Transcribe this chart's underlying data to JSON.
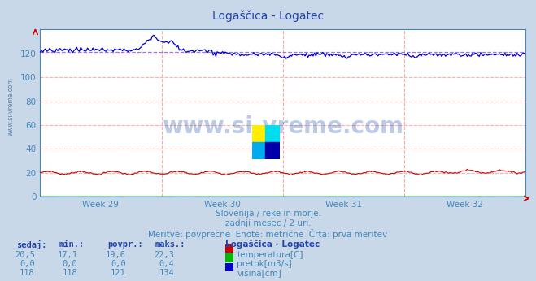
{
  "title": "Logaščica - Logatec",
  "bg_color": "#c8d8e8",
  "plot_bg_color": "#ffffff",
  "title_color": "#2244aa",
  "axis_color": "#4488bb",
  "grid_color_v": "#ffaaaa",
  "grid_color_h": "#ffaaaa",
  "week_labels": [
    "Week 29",
    "Week 30",
    "Week 31",
    "Week 32"
  ],
  "ylim": [
    0,
    140
  ],
  "yticks": [
    0,
    20,
    40,
    60,
    80,
    100,
    120
  ],
  "watermark": "www.si-vreme.com",
  "watermark_color": "#2255aa",
  "subtitle1": "Slovenija / reke in morje.",
  "subtitle2": "zadnji mesec / 2 uri.",
  "subtitle3": "Meritve: povprečne  Enote: metrične  Črta: prva meritev",
  "subtitle_color": "#4488bb",
  "table_header_color": "#2244aa",
  "table_value_color": "#4488bb",
  "table_headers": [
    "sedaj:",
    "min.:",
    "povpr.:",
    "maks.:"
  ],
  "table_row1": [
    "20,5",
    "17,1",
    "19,6",
    "22,3"
  ],
  "table_row2": [
    "0,0",
    "0,0",
    "0,0",
    "0,4"
  ],
  "table_row3": [
    "118",
    "118",
    "121",
    "134"
  ],
  "legend_title": "Logaščica - Logatec",
  "legend_items": [
    "temperatura[C]",
    "pretok[m3/s]",
    "višina[cm]"
  ],
  "legend_colors": [
    "#cc0000",
    "#00bb00",
    "#0000cc"
  ],
  "avg_line_color": "#7777dd",
  "avg_line_value": 121.0,
  "temp_line_color": "#cc0000",
  "pretok_line_color": "#00bb00",
  "visina_line_color": "#0000cc",
  "n_points": 360,
  "temp_base": 20.0,
  "visina_base": 123.0,
  "visina_post_spike": 119.0
}
